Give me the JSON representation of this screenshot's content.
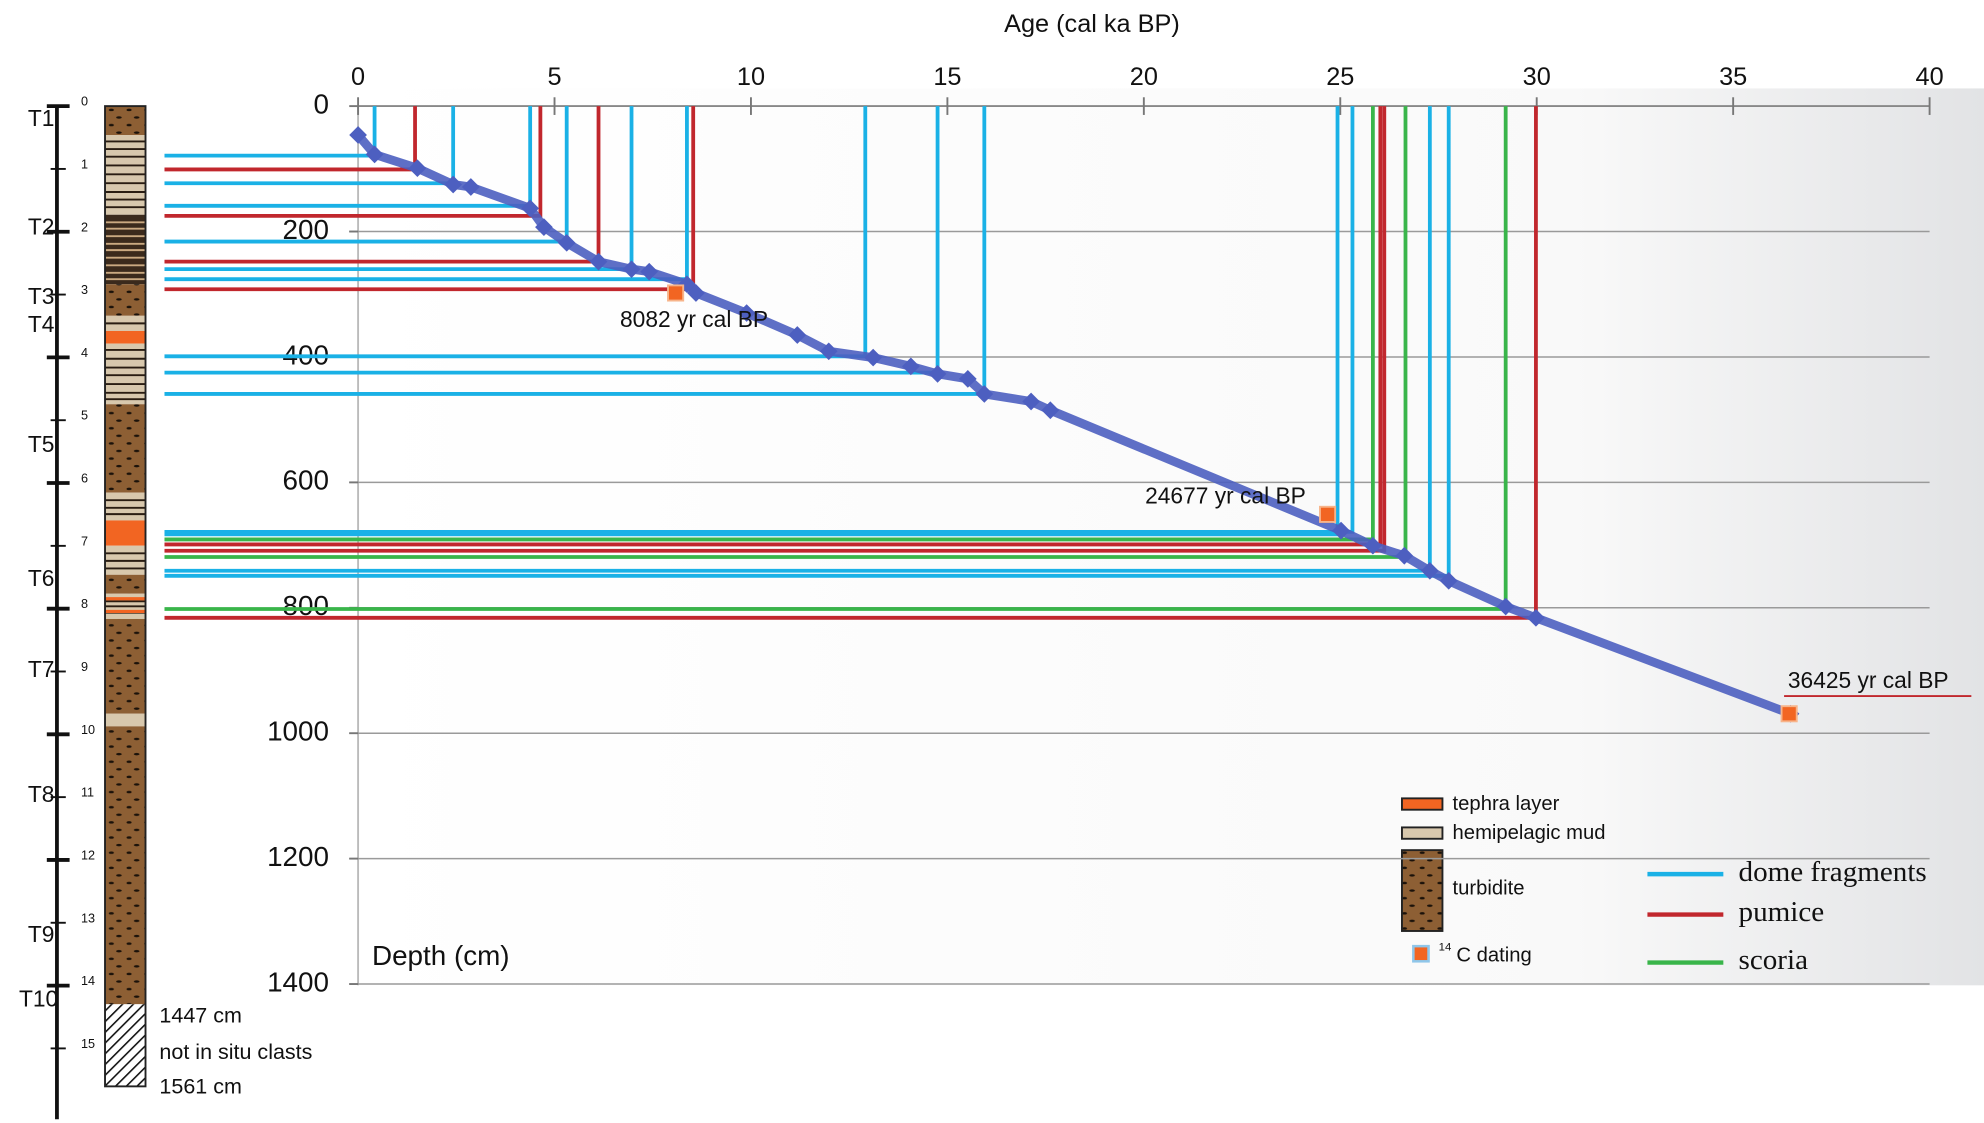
{
  "chart_data": {
    "type": "age-depth",
    "x_label": "Age (cal ka BP)",
    "y_label": "Depth (cm)",
    "xlim": [
      0,
      40
    ],
    "xticks": [
      0,
      5,
      10,
      15,
      20,
      25,
      30,
      35,
      40
    ],
    "ylim": [
      0,
      1400
    ],
    "yticks": [
      0,
      200,
      400,
      600,
      800,
      1000,
      1200,
      1400
    ],
    "y_inverted": true,
    "x_axis_top": true,
    "grid": true,
    "curve": {
      "color": "#4d5fc0",
      "x": [
        0,
        0.42,
        1.51,
        2.42,
        2.87,
        4.38,
        4.73,
        5.31,
        6.12,
        6.96,
        7.41,
        8.37,
        8.6,
        9.89,
        11.18,
        11.98,
        13.11,
        14.07,
        14.75,
        15.52,
        15.94,
        17.13,
        17.62,
        25.02,
        25.83,
        26.63,
        27.28,
        27.76,
        29.21,
        29.98,
        36.46
      ],
      "values": [
        46,
        77,
        99,
        125,
        129,
        163,
        193,
        218,
        248,
        260,
        264,
        284,
        298,
        330,
        365,
        391,
        401,
        415,
        427,
        435,
        459,
        471,
        485,
        677,
        701,
        717,
        741,
        757,
        798,
        816,
        969
      ]
    },
    "series": [
      {
        "name": "dome fragments",
        "color": "#1ab1e6",
        "x": [
          0.42,
          2.42,
          4.38,
          5.31,
          6.96,
          8.37,
          12.91,
          14.75,
          15.94,
          24.93,
          25.31,
          27.28,
          27.76
        ],
        "values": [
          79,
          123,
          159,
          216,
          260,
          276,
          399,
          425,
          459,
          683,
          679,
          741,
          749
        ]
      },
      {
        "name": "pumice",
        "color": "#c1272d",
        "x": [
          1.45,
          4.64,
          6.12,
          8.53,
          26.02,
          26.12,
          29.98
        ],
        "values": [
          101,
          175,
          248,
          292,
          699,
          709,
          816
        ]
      },
      {
        "name": "scoria",
        "color": "#39b54a",
        "x": [
          25.83,
          26.66,
          29.21
        ],
        "values": [
          691,
          719,
          802
        ]
      }
    ],
    "dates": {
      "color": "#f26522",
      "x": [
        8.082,
        24.677,
        36.425
      ],
      "values": [
        298,
        651,
        969
      ],
      "labels": [
        "8082 yr cal BP",
        "24677 yr cal BP",
        "36425 yr cal BP"
      ]
    },
    "lithology_legend": {
      "tephra": "tephra layer",
      "mud": "hemipelagic mud",
      "turbidite": "turbidite",
      "dating_superscript": "14",
      "dating": "C dating"
    },
    "column": {
      "depth_ticks": [
        0,
        1,
        2,
        3,
        4,
        5,
        6,
        7,
        8,
        9,
        10,
        11,
        12,
        13,
        14,
        15
      ],
      "units": [
        "T1",
        "T2",
        "T3",
        "T4",
        "T5",
        "T6",
        "T7",
        "T8",
        "T9",
        "T10"
      ],
      "notes": [
        "1447  cm",
        "not in situ clasts",
        "1561  cm"
      ]
    }
  }
}
